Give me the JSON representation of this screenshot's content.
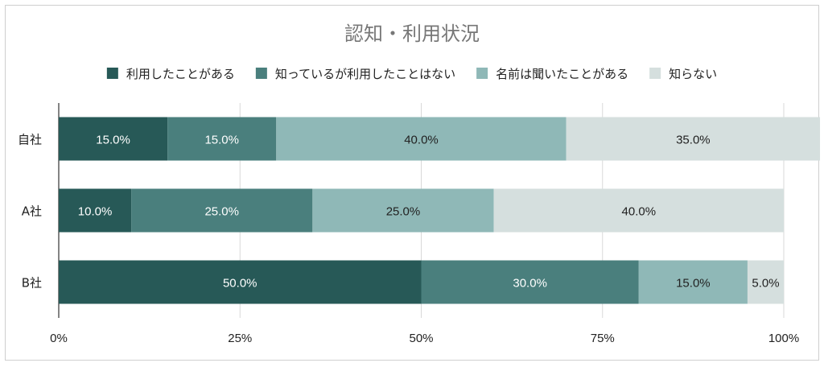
{
  "chart_data": {
    "type": "bar",
    "orientation": "horizontal",
    "stacked": "percent",
    "title": "認知・利用状況",
    "categories": [
      "自社",
      "A社",
      "B社"
    ],
    "series": [
      {
        "name": "利用したことがある",
        "values": [
          15.0,
          10.0,
          50.0
        ],
        "labels": [
          "15.0%",
          "10.0%",
          "50.0%"
        ],
        "color": "#275957"
      },
      {
        "name": "知っているが利用したことはない",
        "values": [
          15.0,
          25.0,
          30.0
        ],
        "labels": [
          "15.0%",
          "25.0%",
          "30.0%"
        ],
        "color": "#4a7f7d"
      },
      {
        "name": "名前は聞いたことがある",
        "values": [
          40.0,
          25.0,
          15.0
        ],
        "labels": [
          "40.0%",
          "25.0%",
          "15.0%"
        ],
        "color": "#8fb8b7"
      },
      {
        "name": "知らない",
        "values": [
          35.0,
          40.0,
          5.0
        ],
        "labels": [
          "35.0%",
          "40.0%",
          "5.0%"
        ],
        "color": "#d5dfde"
      }
    ],
    "xlim": [
      0,
      100
    ],
    "x_ticks": [
      "0%",
      "25%",
      "50%",
      "75%",
      "100%"
    ],
    "grid": true,
    "legend_position": "top"
  }
}
